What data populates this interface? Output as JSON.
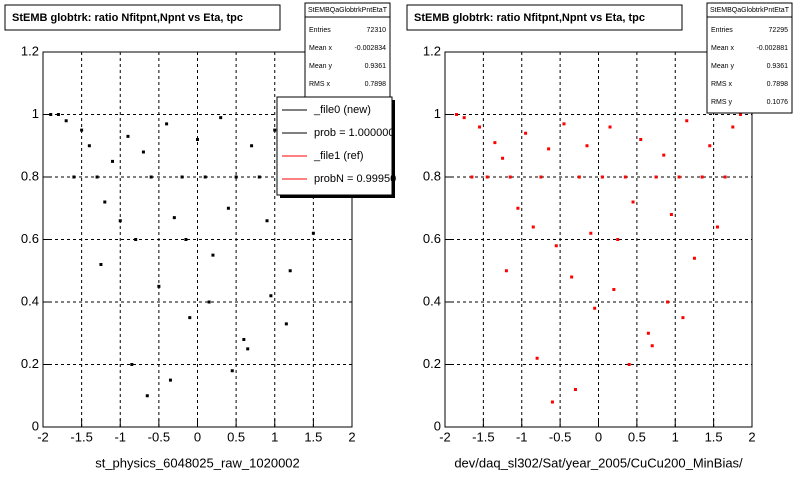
{
  "chart_data": [
    {
      "type": "scatter",
      "title": "StEMB globtrk: ratio Nfitpnt,Npnt vs Eta, tpc",
      "xlabel": "st_physics_6048025_raw_1020002",
      "stats_name": "StEMBQaGlobtrkPntEtaT",
      "stats": [
        {
          "label": "Entries",
          "value": 72310
        },
        {
          "label": "Mean x",
          "value": -0.002834
        },
        {
          "label": "Mean y",
          "value": 0.9361
        },
        {
          "label": "RMS x",
          "value": 0.7898
        },
        {
          "label": "RMS y",
          "value": 0.1075
        }
      ],
      "legend": [
        {
          "text": "_file0 (new)",
          "color": "#000000"
        },
        {
          "text": "prob = 1.000000",
          "color": "#000000"
        },
        {
          "text": "_file1 (ref)",
          "color": "#ff0000"
        },
        {
          "text": "probN = 0.99950",
          "color": "#ff0000"
        }
      ],
      "xlim": [
        -2,
        2
      ],
      "ylim": [
        0,
        1.2
      ],
      "xticks": [
        -2,
        -1.5,
        -1,
        -0.5,
        0,
        0.5,
        1,
        1.5,
        2
      ],
      "yticks": [
        0,
        0.2,
        0.4,
        0.6,
        0.8,
        1,
        1.2
      ],
      "grid": true,
      "series": [
        {
          "color": "#000000",
          "x": [
            -1.9,
            -1.8,
            -1.7,
            -1.6,
            -1.5,
            -1.4,
            -1.3,
            -1.2,
            -1.1,
            -1,
            -0.9,
            -0.8,
            -0.7,
            -0.6,
            -0.5,
            -0.4,
            -0.3,
            -0.2,
            -0.1,
            0,
            0.1,
            0.2,
            0.3,
            0.4,
            0.5,
            0.6,
            0.7,
            0.8,
            0.9,
            1,
            1.1,
            1.2,
            1.3,
            1.4,
            1.5,
            1.6,
            1.7,
            1.8,
            -0.85,
            -0.35,
            0.15,
            0.65,
            1.15,
            -1.25,
            -0.65,
            0.45,
            0.95,
            -0.15
          ],
          "y": [
            1,
            1,
            0.98,
            0.8,
            0.95,
            0.9,
            0.8,
            0.72,
            0.85,
            0.66,
            0.93,
            0.6,
            0.88,
            0.8,
            0.45,
            0.97,
            0.67,
            0.8,
            0.35,
            0.92,
            0.8,
            0.55,
            0.99,
            0.7,
            0.8,
            0.28,
            0.9,
            0.8,
            0.66,
            0.95,
            0.8,
            0.5,
            0.88,
            0.8,
            0.62,
            0.97,
            0.8,
            0.99,
            0.2,
            0.15,
            0.4,
            0.25,
            0.33,
            0.52,
            0.1,
            0.18,
            0.42,
            0.6
          ]
        }
      ]
    },
    {
      "type": "scatter",
      "title": "StEMB globtrk: ratio Nfitpnt,Npnt vs Eta, tpc",
      "xlabel": "dev/daq_sl302/Sat/year_2005/CuCu200_MinBias/",
      "stats_name": "StEMBQaGlobtrkPntEtaT",
      "stats": [
        {
          "label": "Entries",
          "value": 72295
        },
        {
          "label": "Mean x",
          "value": -0.002881
        },
        {
          "label": "Mean y",
          "value": 0.9361
        },
        {
          "label": "RMS x",
          "value": 0.7898
        },
        {
          "label": "RMS y",
          "value": 0.1076
        }
      ],
      "xlim": [
        -2,
        2
      ],
      "ylim": [
        0,
        1.2
      ],
      "xticks": [
        -2,
        -1.5,
        -1,
        -0.5,
        0,
        0.5,
        1,
        1.5,
        2
      ],
      "yticks": [
        0,
        0.2,
        0.4,
        0.6,
        0.8,
        1,
        1.2
      ],
      "grid": true,
      "series": [
        {
          "color": "#ff0000",
          "x": [
            -1.85,
            -1.75,
            -1.65,
            -1.55,
            -1.45,
            -1.35,
            -1.25,
            -1.15,
            -1.05,
            -0.95,
            -0.85,
            -0.75,
            -0.65,
            -0.55,
            -0.45,
            -0.35,
            -0.25,
            -0.15,
            -0.05,
            0.05,
            0.15,
            0.25,
            0.35,
            0.45,
            0.55,
            0.65,
            0.75,
            0.85,
            0.95,
            1.05,
            1.15,
            1.25,
            1.35,
            1.45,
            1.55,
            1.65,
            1.75,
            1.85,
            -0.8,
            -0.3,
            0.2,
            0.7,
            1.1,
            -1.2,
            -0.6,
            0.4,
            0.9,
            -0.1
          ],
          "y": [
            1,
            0.99,
            0.8,
            0.96,
            0.8,
            0.91,
            0.86,
            0.8,
            0.7,
            0.94,
            0.64,
            0.8,
            0.89,
            0.58,
            0.97,
            0.48,
            0.8,
            0.9,
            0.38,
            0.8,
            0.96,
            0.6,
            0.8,
            0.72,
            0.92,
            0.3,
            0.8,
            0.87,
            0.68,
            0.8,
            0.98,
            0.54,
            0.8,
            0.9,
            0.64,
            0.8,
            0.96,
            1,
            0.22,
            0.12,
            0.44,
            0.26,
            0.35,
            0.5,
            0.08,
            0.2,
            0.4,
            0.62
          ]
        }
      ]
    }
  ]
}
